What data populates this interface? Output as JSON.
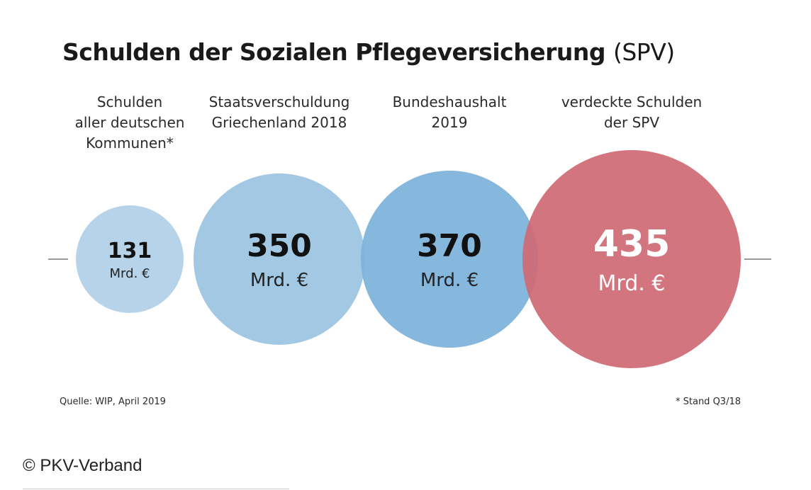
{
  "chart_data": {
    "type": "bubble",
    "title": "Schulden der Sozialen Pflegeversicherung",
    "title_suffix": "(SPV)",
    "unit": "Mrd. €",
    "items": [
      {
        "label": [
          "Schulden",
          "aller deutschen",
          "Kommunen*"
        ],
        "value": 131,
        "color": "#b6d3ea"
      },
      {
        "label": [
          "Staatsverschuldung",
          "Griechenland 2018"
        ],
        "value": 350,
        "color": "#a2c8e4"
      },
      {
        "label": [
          "Bundeshaushalt",
          "2019"
        ],
        "value": 370,
        "color": "#80b3da"
      },
      {
        "label": [
          "verdeckte Schulden",
          "der SPV"
        ],
        "value": 435,
        "color": "#d06a74"
      }
    ]
  },
  "footer": {
    "source": "Quelle: WIP, April 2019",
    "note": "* Stand Q3/18",
    "copyright": "© PKV-Verband"
  }
}
